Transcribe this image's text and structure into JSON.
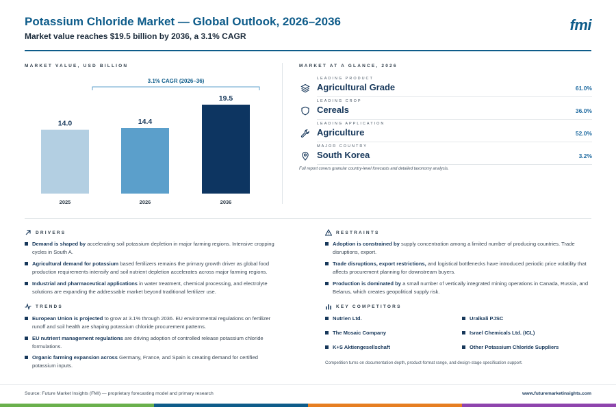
{
  "header": {
    "title": "Potassium Chloride Market — Global Outlook, 2026–2036",
    "subtitle": "Market value reaches $19.5 billion by 2036, a 3.1% CAGR",
    "logo": "fmi"
  },
  "chart_section_label": "MARKET VALUE, USD BILLION",
  "chart_data": {
    "type": "bar",
    "categories": [
      "2025",
      "2026",
      "2036"
    ],
    "values": [
      14.0,
      14.4,
      19.5
    ],
    "value_labels": [
      "14.0",
      "14.4",
      "19.5"
    ],
    "colors": [
      "#b3cfe2",
      "#5b9fcb",
      "#0d3561"
    ],
    "annotation": "3.1% CAGR (2026–36)",
    "ylim": [
      0,
      19.5
    ],
    "grid": false,
    "legend": "none"
  },
  "glance": {
    "label": "MARKET AT A GLANCE, 2026",
    "items": [
      {
        "kicker": "LEADING PRODUCT",
        "value": "Agricultural Grade",
        "pct": "61.0%",
        "icon": "layers-icon"
      },
      {
        "kicker": "LEADING CROP",
        "value": "Cereals",
        "pct": "36.0%",
        "icon": "shield-icon"
      },
      {
        "kicker": "LEADING APPLICATION",
        "value": "Agriculture",
        "pct": "52.0%",
        "icon": "wrench-icon"
      },
      {
        "kicker": "MAJOR COUNTRY",
        "value": "South Korea",
        "pct": "3.2%",
        "icon": "map-pin-icon"
      }
    ],
    "footnote": "Full report covers granular country-level forecasts and detailed taxonomy analysis."
  },
  "drivers": {
    "label": "DRIVERS",
    "items": [
      {
        "bold": "Demand is shaped by",
        "text": " accelerating soil potassium depletion in major farming regions. Intensive cropping cycles in South A."
      },
      {
        "bold": "Agricultural demand for potassium",
        "text": " based fertilizers remains the primary growth driver as global food production requirements intensify and soil nutrient depletion accelerates across major farming regions."
      },
      {
        "bold": "Industrial and pharmaceutical applications",
        "text": " in water treatment, chemical processing, and electrolyte solutions are expanding the addressable market beyond traditional fertilizer use."
      }
    ]
  },
  "restraints": {
    "label": "RESTRAINTS",
    "items": [
      {
        "bold": "Adoption is constrained by",
        "text": " supply concentration among a limited number of producing countries. Trade disruptions, export."
      },
      {
        "bold": "Trade disruptions, export restrictions,",
        "text": " and logistical bottlenecks have introduced periodic price volatility that affects procurement planning for downstream buyers."
      },
      {
        "bold": "Production is dominated by",
        "text": " a small number of vertically integrated mining operations in Canada, Russia, and Belarus, which creates geopolitical supply risk."
      }
    ]
  },
  "trends": {
    "label": "TRENDS",
    "items": [
      {
        "bold": "European Union is projected",
        "text": " to grow at 3.1% through 2036. EU environmental regulations on fertilizer runoff and soil health are shaping potassium chloride procurement patterns."
      },
      {
        "bold": "EU nutrient management regulations",
        "text": " are driving adoption of controlled release potassium chloride formulations."
      },
      {
        "bold": "Organic farming expansion across",
        "text": " Germany, France, and Spain is creating demand for certified potassium inputs."
      }
    ]
  },
  "competitors": {
    "label": "KEY COMPETITORS",
    "items": [
      "Nutrien Ltd.",
      "Uralkali PJSC",
      "The Mosaic Company",
      "Israel Chemicals Ltd. (ICL)",
      "K+S Aktiengesellschaft",
      "Other Potassium Chloride Suppliers"
    ],
    "note": "Competition turns on documentation depth, product-format range, and design-stage specification support."
  },
  "footer": {
    "source": "Source: Future Market Insights (FMI) — proprietary forecasting model and primary research",
    "url": "www.futuremarketinsights.com",
    "bar_colors": [
      "#6ab04c",
      "#0e5c8a",
      "#e67e22",
      "#8e44ad"
    ]
  }
}
